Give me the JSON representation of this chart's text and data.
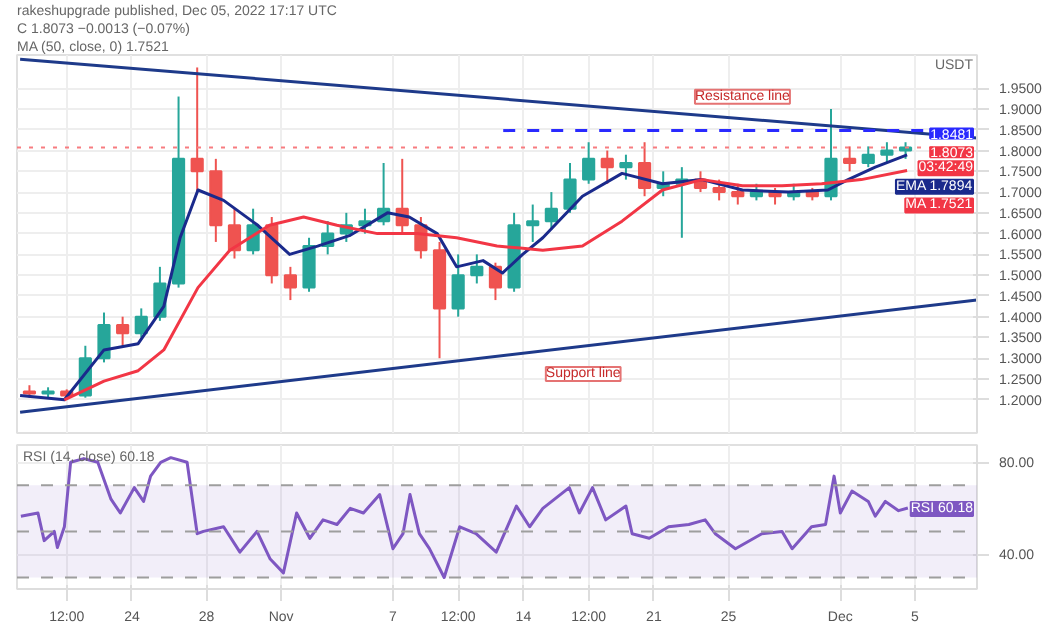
{
  "chart_data": [
    {
      "type": "candlestick",
      "title": "rakeshupgrade published, Dec 05, 2022 17:17 UTC",
      "ylabel": "USDT",
      "x": [
        "2022-10-18T12:00",
        "2022-10-19T12:00",
        "2022-10-20T12:00",
        "2022-10-21T12:00",
        "2022-10-22T12:00",
        "2022-10-23T12:00",
        "2022-10-24T12:00",
        "2022-10-25T12:00",
        "2022-10-26T12:00",
        "2022-10-27T12:00",
        "2022-10-28T12:00",
        "2022-10-29T12:00",
        "2022-10-30T12:00",
        "2022-10-31T12:00",
        "2022-11-01T12:00",
        "2022-11-02T12:00",
        "2022-11-03T12:00",
        "2022-11-04T12:00",
        "2022-11-05T12:00",
        "2022-11-06T12:00",
        "2022-11-07T12:00",
        "2022-11-08T12:00",
        "2022-11-09T12:00",
        "2022-11-10T12:00",
        "2022-11-11T12:00",
        "2022-11-12T12:00",
        "2022-11-13T12:00",
        "2022-11-14T12:00",
        "2022-11-15T12:00",
        "2022-11-16T12:00",
        "2022-11-17T12:00",
        "2022-11-18T12:00",
        "2022-11-19T12:00",
        "2022-11-20T12:00",
        "2022-11-21T12:00",
        "2022-11-22T12:00",
        "2022-11-23T12:00",
        "2022-11-24T12:00",
        "2022-11-25T12:00",
        "2022-11-26T12:00",
        "2022-11-27T12:00",
        "2022-11-28T12:00",
        "2022-11-29T12:00",
        "2022-11-30T12:00",
        "2022-12-01T12:00",
        "2022-12-02T12:00",
        "2022-12-03T12:00",
        "2022-12-04T12:00"
      ],
      "ohlc": [
        [
          1.22,
          1.235,
          1.205,
          1.215
        ],
        [
          1.215,
          1.23,
          1.205,
          1.22
        ],
        [
          1.22,
          1.225,
          1.2,
          1.21
        ],
        [
          1.21,
          1.33,
          1.205,
          1.3
        ],
        [
          1.3,
          1.41,
          1.29,
          1.38
        ],
        [
          1.38,
          1.4,
          1.33,
          1.36
        ],
        [
          1.36,
          1.42,
          1.35,
          1.4
        ],
        [
          1.4,
          1.52,
          1.39,
          1.48
        ],
        [
          1.48,
          1.93,
          1.47,
          1.78
        ],
        [
          1.78,
          2.0,
          1.7,
          1.75
        ],
        [
          1.75,
          1.78,
          1.58,
          1.62
        ],
        [
          1.62,
          1.66,
          1.54,
          1.56
        ],
        [
          1.56,
          1.66,
          1.55,
          1.62
        ],
        [
          1.62,
          1.64,
          1.48,
          1.5
        ],
        [
          1.5,
          1.52,
          1.44,
          1.47
        ],
        [
          1.47,
          1.59,
          1.46,
          1.57
        ],
        [
          1.57,
          1.63,
          1.55,
          1.6
        ],
        [
          1.6,
          1.65,
          1.58,
          1.62
        ],
        [
          1.62,
          1.66,
          1.6,
          1.63
        ],
        [
          1.63,
          1.77,
          1.62,
          1.66
        ],
        [
          1.66,
          1.78,
          1.6,
          1.62
        ],
        [
          1.62,
          1.64,
          1.54,
          1.56
        ],
        [
          1.56,
          1.58,
          1.3,
          1.42
        ],
        [
          1.42,
          1.55,
          1.4,
          1.5
        ],
        [
          1.5,
          1.55,
          1.48,
          1.52
        ],
        [
          1.52,
          1.53,
          1.44,
          1.47
        ],
        [
          1.47,
          1.65,
          1.46,
          1.62
        ],
        [
          1.62,
          1.67,
          1.58,
          1.63
        ],
        [
          1.63,
          1.7,
          1.61,
          1.66
        ],
        [
          1.66,
          1.77,
          1.65,
          1.73
        ],
        [
          1.73,
          1.82,
          1.72,
          1.78
        ],
        [
          1.78,
          1.8,
          1.72,
          1.76
        ],
        [
          1.76,
          1.79,
          1.73,
          1.77
        ],
        [
          1.77,
          1.82,
          1.69,
          1.71
        ],
        [
          1.71,
          1.75,
          1.69,
          1.72
        ],
        [
          1.72,
          1.76,
          1.59,
          1.73
        ],
        [
          1.73,
          1.75,
          1.7,
          1.71
        ],
        [
          1.71,
          1.73,
          1.68,
          1.7
        ],
        [
          1.7,
          1.72,
          1.67,
          1.69
        ],
        [
          1.69,
          1.72,
          1.68,
          1.7
        ],
        [
          1.7,
          1.71,
          1.67,
          1.69
        ],
        [
          1.69,
          1.72,
          1.68,
          1.7
        ],
        [
          1.7,
          1.71,
          1.68,
          1.69
        ],
        [
          1.69,
          1.9,
          1.68,
          1.78
        ],
        [
          1.78,
          1.81,
          1.75,
          1.77
        ],
        [
          1.77,
          1.81,
          1.76,
          1.79
        ],
        [
          1.79,
          1.82,
          1.77,
          1.8
        ],
        [
          1.8,
          1.82,
          1.78,
          1.8073
        ]
      ],
      "colors": [
        "#ef5350",
        "#26a69a",
        "#ef5350",
        "#26a69a",
        "#26a69a",
        "#ef5350",
        "#26a69a",
        "#26a69a",
        "#26a69a",
        "#ef5350",
        "#ef5350",
        "#ef5350",
        "#26a69a",
        "#ef5350",
        "#ef5350",
        "#26a69a",
        "#26a69a",
        "#26a69a",
        "#26a69a",
        "#26a69a",
        "#ef5350",
        "#ef5350",
        "#ef5350",
        "#26a69a",
        "#26a69a",
        "#ef5350",
        "#26a69a",
        "#26a69a",
        "#26a69a",
        "#26a69a",
        "#26a69a",
        "#ef5350",
        "#26a69a",
        "#ef5350",
        "#26a69a",
        "#26a69a",
        "#ef5350",
        "#ef5350",
        "#ef5350",
        "#26a69a",
        "#ef5350",
        "#26a69a",
        "#ef5350",
        "#26a69a",
        "#ef5350",
        "#26a69a",
        "#26a69a",
        "#26a69a"
      ],
      "series": [
        {
          "type": "line",
          "name": "EMA",
          "color": "#1a2a8c",
          "x": [
            "2022-10-18T00:00",
            "2022-10-20T09:00",
            "2022-10-22T12:00",
            "2022-10-24T08:00",
            "2022-10-25T17:00",
            "2022-10-26T14:00",
            "2022-10-27T13:00",
            "2022-10-28T22:00",
            "2022-10-30T18:00",
            "2022-11-01T11:00",
            "2022-11-02T23:00",
            "2022-11-04T16:00",
            "2022-11-06T17:00",
            "2022-11-07T21:00",
            "2022-11-09T09:00",
            "2022-11-10T10:00",
            "2022-11-11T20:00",
            "2022-11-12T21:00",
            "2022-11-13T23:00",
            "2022-11-15T01:00",
            "2022-11-17T04:00",
            "2022-11-19T07:00",
            "2022-11-21T11:00",
            "2022-11-23T14:00",
            "2022-11-25T18:00",
            "2022-11-28T05:00",
            "2022-11-30T08:00",
            "2022-12-01T10:00",
            "2022-12-02T21:00",
            "2022-12-04T14:00"
          ],
          "values": [
            1.21,
            1.2,
            1.32,
            1.335,
            1.425,
            1.59,
            1.705,
            1.68,
            1.62,
            1.55,
            1.57,
            1.595,
            1.65,
            1.64,
            1.6,
            1.52,
            1.535,
            1.505,
            1.55,
            1.59,
            1.69,
            1.745,
            1.72,
            1.73,
            1.705,
            1.7,
            1.705,
            1.73,
            1.76,
            1.7894
          ],
          "value_labels": [
            null,
            null,
            null,
            null,
            null,
            null,
            null,
            null,
            null,
            null,
            null,
            null,
            null,
            null,
            null,
            null,
            null,
            null,
            null,
            null,
            null,
            null,
            null,
            null,
            null,
            null,
            null,
            null,
            null,
            "1.7894"
          ]
        },
        {
          "type": "line",
          "name": "MA",
          "color": "#f23645",
          "x": [
            "2022-10-20T09:00",
            "2022-10-22T12:00",
            "2022-10-24T08:00",
            "2022-10-25T17:00",
            "2022-10-27T13:00",
            "2022-10-29T06:00",
            "2022-10-31T09:00",
            "2022-11-02T05:00",
            "2022-11-04T00:00",
            "2022-11-06T04:00",
            "2022-11-08T07:00",
            "2022-11-10T10:00",
            "2022-11-12T14:00",
            "2022-11-13T23:00",
            "2022-11-15T01:00",
            "2022-11-17T04:00",
            "2022-11-19T07:00",
            "2022-11-21T11:00",
            "2022-11-23T14:00",
            "2022-11-25T18:00",
            "2022-11-27T21:00",
            "2022-11-30T00:00",
            "2022-12-02T03:00",
            "2022-12-04T14:00"
          ],
          "values": [
            1.2,
            1.245,
            1.27,
            1.32,
            1.47,
            1.56,
            1.62,
            1.64,
            1.62,
            1.6,
            1.6,
            1.59,
            1.57,
            1.565,
            1.56,
            1.57,
            1.63,
            1.705,
            1.73,
            1.715,
            1.715,
            1.72,
            1.73,
            1.7521
          ],
          "value_labels": [
            null,
            null,
            null,
            null,
            null,
            null,
            null,
            null,
            null,
            null,
            null,
            null,
            null,
            null,
            null,
            null,
            null,
            null,
            null,
            null,
            null,
            null,
            null,
            "1.7521"
          ]
        },
        {
          "type": "line",
          "color": "#1e3a8a",
          "x": [
            "2022-10-18T00:00",
            "2022-12-08T08:00"
          ],
          "values": [
            2.02,
            1.83
          ]
        },
        {
          "type": "line",
          "color": "#1e3a8a",
          "x": [
            "2022-10-18T00:00",
            "2022-12-08T08:00"
          ],
          "values": [
            1.17,
            1.44
          ]
        },
        {
          "type": "line",
          "color": "#2a2aff",
          "line_style": "dashed",
          "x": [
            "2022-11-12T22:00",
            "2022-12-08T08:00"
          ],
          "values": [
            1.8481,
            1.8481
          ],
          "value_labels": [
            null,
            "1.8481"
          ]
        }
      ],
      "ref_lines": [
        {
          "axis": "y",
          "value": 1.8073,
          "color": "#f77c80",
          "line_style": "dotted"
        }
      ],
      "annotations": [
        "C 1.8073 −0.0013 (−0.07%)",
        "MA (50, close, 0) 1.7521",
        {
          "text": "Resistance line",
          "x": "2022-11-25T18:00",
          "y": 1.874
        },
        {
          "text": "Support line",
          "x": "2022-11-17T05:00",
          "y": 1.332
        },
        {
          "text": "1.8073",
          "y": 1.8073
        },
        {
          "text": "03:42:49",
          "y": 1.8073
        }
      ],
      "xlim": [
        "2022-10-17T20:00",
        "2022-12-08T08:00"
      ],
      "xticks": [
        {
          "value": "2022-10-20T12:00",
          "label": null
        },
        {
          "value": "2022-10-24",
          "label": null
        },
        {
          "value": "2022-10-28",
          "label": null
        },
        {
          "value": "2022-11-01",
          "label": null
        },
        {
          "value": "2022-11-07",
          "label": null
        },
        {
          "value": "2022-11-10T12:00",
          "label": null
        },
        {
          "value": "2022-11-14",
          "label": null
        },
        {
          "value": "2022-11-17T12:00",
          "label": null
        },
        {
          "value": "2022-11-21",
          "label": null
        },
        {
          "value": "2022-11-25",
          "label": null
        },
        {
          "value": "2022-12-01",
          "label": null
        },
        {
          "value": "2022-12-05",
          "label": null
        }
      ],
      "ylim": [
        1.12,
        2.03
      ],
      "yticks": [
        {
          "value": 1.2,
          "label": "1.2000"
        },
        {
          "value": 1.25,
          "label": "1.2500"
        },
        {
          "value": 1.3,
          "label": "1.3000"
        },
        {
          "value": 1.35,
          "label": "1.3500"
        },
        {
          "value": 1.4,
          "label": "1.4000"
        },
        {
          "value": 1.45,
          "label": "1.4500"
        },
        {
          "value": 1.5,
          "label": "1.5000"
        },
        {
          "value": 1.55,
          "label": "1.5500"
        },
        {
          "value": 1.6,
          "label": "1.6000"
        },
        {
          "value": 1.65,
          "label": "1.6500"
        },
        {
          "value": 1.7,
          "label": "1.7000"
        },
        {
          "value": 1.75,
          "label": "1.7500"
        },
        {
          "value": 1.8,
          "label": "1.8000"
        },
        {
          "value": 1.85,
          "label": "1.8500"
        },
        {
          "value": 1.9,
          "label": "1.9000"
        },
        {
          "value": 1.95,
          "label": "1.9500"
        }
      ],
      "tick_labels": "y",
      "grid": true
    },
    {
      "type": "line",
      "title": "RSI (14, close) 60.18",
      "series": [
        {
          "name": "RSI",
          "color": "#7e57c2",
          "x": [
            "2022-10-18T01:00",
            "2022-10-18T23:00",
            "2022-10-19T07:00",
            "2022-10-19T20:00",
            "2022-10-20T00:00",
            "2022-10-20T09:00",
            "2022-10-20T17:00",
            "2022-10-21T10:00",
            "2022-10-22T04:00",
            "2022-10-22T21:00",
            "2022-10-23T09:00",
            "2022-10-24T03:00",
            "2022-10-24T15:00",
            "2022-10-25T00:00",
            "2022-10-25T13:00",
            "2022-10-26T02:00",
            "2022-10-26T23:00",
            "2022-10-27T12:00",
            "2022-10-27T20:00",
            "2022-10-28T22:00",
            "2022-10-29T19:00",
            "2022-10-30T17:00",
            "2022-10-31T10:00",
            "2022-11-01T03:00",
            "2022-11-01T20:00",
            "2022-11-02T13:00",
            "2022-11-03T06:00",
            "2022-11-04T00:00",
            "2022-11-04T17:00",
            "2022-11-05T10:00",
            "2022-11-06T07:00",
            "2022-11-07T00:00",
            "2022-11-07T13:00",
            "2022-11-07T22:00",
            "2022-11-08T10:00",
            "2022-11-08T23:00",
            "2022-11-09T18:00",
            "2022-11-10T14:00",
            "2022-11-11T11:00",
            "2022-11-12T13:00",
            "2022-11-13T15:00",
            "2022-11-14T08:00",
            "2022-11-15T01:00",
            "2022-11-16T11:00",
            "2022-11-17T00:00",
            "2022-11-17T17:00",
            "2022-11-18T10:00",
            "2022-11-19T12:00",
            "2022-11-19T20:00",
            "2022-11-20T18:00",
            "2022-11-21T19:00",
            "2022-11-22T21:00",
            "2022-11-23T18:00",
            "2022-11-24T07:00",
            "2022-11-25T09:00",
            "2022-11-26T19:00",
            "2022-11-27T21:00",
            "2022-11-28T10:00",
            "2022-11-29T11:00",
            "2022-11-30T05:00",
            "2022-11-30T16:00",
            "2022-12-01T00:00",
            "2022-12-01T15:00",
            "2022-12-02T12:00",
            "2022-12-02T21:00",
            "2022-12-03T10:00",
            "2022-12-04T03:00",
            "2022-12-04T15:00"
          ],
          "values": [
            56.6,
            58,
            46,
            50,
            43,
            52,
            80,
            81.6,
            80,
            64,
            58,
            69,
            63,
            74,
            80,
            82,
            80,
            49,
            50,
            52,
            41,
            50,
            38,
            32,
            58,
            47,
            55,
            53,
            60,
            58,
            66,
            42.5,
            49,
            66,
            49,
            42.5,
            30,
            52,
            49,
            41,
            61,
            52,
            60,
            69,
            58,
            69,
            55,
            61,
            49,
            47,
            52,
            53,
            55,
            49,
            42.5,
            49,
            50,
            42.5,
            52,
            53,
            74,
            58,
            67.5,
            63,
            56.6,
            63,
            59,
            60.18
          ],
          "value_labels": [
            null,
            null,
            null,
            null,
            null,
            null,
            null,
            null,
            null,
            null,
            null,
            null,
            null,
            null,
            null,
            null,
            null,
            null,
            null,
            null,
            null,
            null,
            null,
            null,
            null,
            null,
            null,
            null,
            null,
            null,
            null,
            null,
            null,
            null,
            null,
            null,
            null,
            null,
            null,
            null,
            null,
            null,
            null,
            null,
            null,
            null,
            null,
            null,
            null,
            null,
            null,
            null,
            null,
            null,
            null,
            null,
            null,
            null,
            null,
            null,
            null,
            null,
            null,
            null,
            null,
            null,
            null,
            "60.18"
          ]
        }
      ],
      "bands": [
        {
          "axis": "y",
          "from": 30,
          "to": 70,
          "color": "#7e57c2"
        }
      ],
      "ref_lines": [
        {
          "axis": "y",
          "value": 70,
          "color": "#9e9e9e",
          "line_style": "dashed"
        },
        {
          "axis": "y",
          "value": 50,
          "color": "#9e9e9e",
          "line_style": "dashed"
        },
        {
          "axis": "y",
          "value": 30,
          "color": "#9e9e9e",
          "line_style": "dashed"
        }
      ],
      "xlim": [
        "2022-10-17T20:00",
        "2022-12-08T08:00"
      ],
      "xticks": [
        {
          "value": "2022-10-20T12:00",
          "label": "12:00"
        },
        {
          "value": "2022-10-24",
          "label": "24"
        },
        {
          "value": "2022-10-28",
          "label": "28"
        },
        {
          "value": "2022-11-01",
          "label": "Nov"
        },
        {
          "value": "2022-11-07",
          "label": "7"
        },
        {
          "value": "2022-11-10T12:00",
          "label": "12:00"
        },
        {
          "value": "2022-11-14",
          "label": "14"
        },
        {
          "value": "2022-11-17T12:00",
          "label": "12:00"
        },
        {
          "value": "2022-11-21",
          "label": "21"
        },
        {
          "value": "2022-11-25",
          "label": "25"
        },
        {
          "value": "2022-12-01",
          "label": "Dec"
        },
        {
          "value": "2022-12-05",
          "label": "5"
        }
      ],
      "ylim": [
        25,
        87.5
      ],
      "yticks": [
        {
          "value": 80,
          "label": "80.00"
        },
        {
          "value": 40,
          "label": "40.00"
        }
      ],
      "grid": true
    }
  ]
}
